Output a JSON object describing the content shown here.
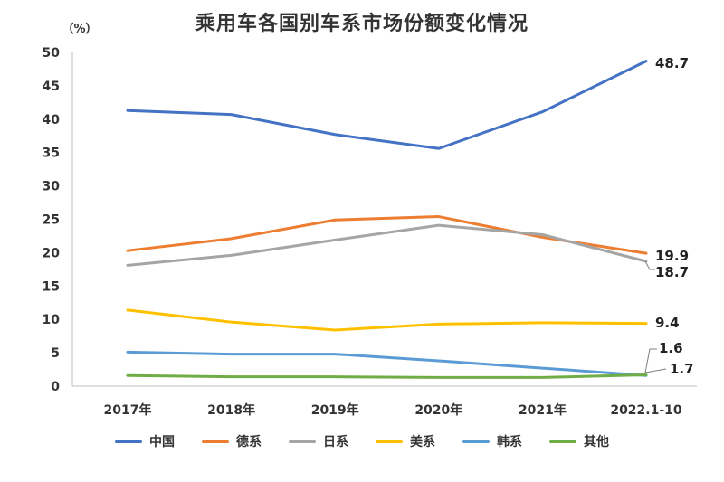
{
  "chart_data": {
    "type": "line",
    "title": "乘用车各国别车系市场份额变化情况",
    "ylabel": "（%）",
    "xlabel": "",
    "ylim": [
      0,
      50
    ],
    "yticks": [
      0,
      5,
      10,
      15,
      20,
      25,
      30,
      35,
      40,
      45,
      50
    ],
    "grid": false,
    "legend_position": "bottom",
    "categories": [
      "2017年",
      "2018年",
      "2019年",
      "2020年",
      "2021年",
      "2022.1-10"
    ],
    "series": [
      {
        "name": "中国",
        "color": "#4472c4",
        "values": [
          41.3,
          40.7,
          37.7,
          35.6,
          41.1,
          48.7
        ],
        "end_label": "48.7"
      },
      {
        "name": "德系",
        "color": "#ed7d31",
        "values": [
          20.3,
          22.1,
          24.9,
          25.4,
          22.3,
          19.9
        ],
        "end_label": "19.9"
      },
      {
        "name": "日系",
        "color": "#a5a5a5",
        "values": [
          18.1,
          19.6,
          21.9,
          24.1,
          22.7,
          18.7
        ],
        "end_label": "18.7"
      },
      {
        "name": "美系",
        "color": "#ffc000",
        "values": [
          11.4,
          9.6,
          8.4,
          9.3,
          9.5,
          9.4
        ],
        "end_label": "9.4"
      },
      {
        "name": "韩系",
        "color": "#5b9bd5",
        "values": [
          5.1,
          4.8,
          4.8,
          3.8,
          2.7,
          1.6
        ],
        "end_label": "1.6"
      },
      {
        "name": "其他",
        "color": "#70ad47",
        "values": [
          1.6,
          1.4,
          1.4,
          1.3,
          1.3,
          1.7
        ],
        "end_label": "1.7"
      }
    ]
  }
}
